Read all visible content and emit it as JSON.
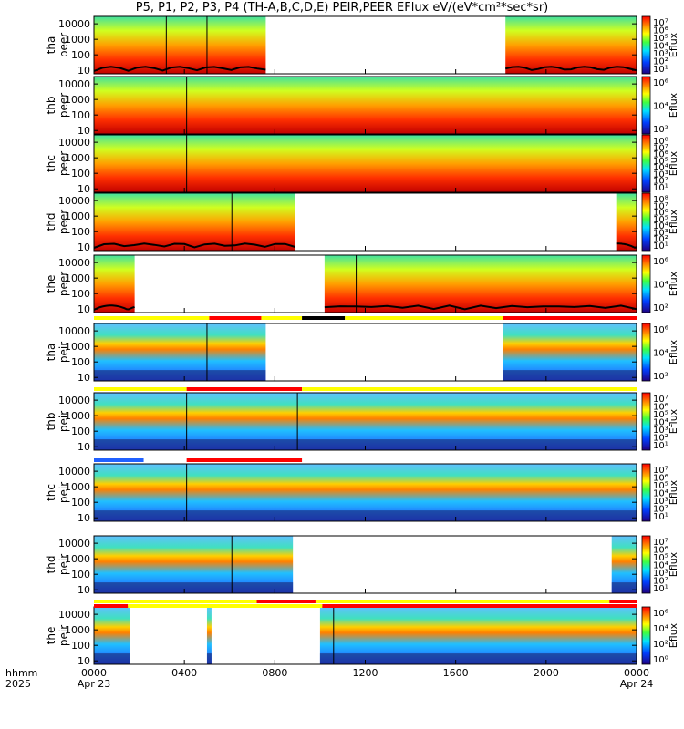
{
  "title": "P5, P1, P2, P3, P4 (TH-A,B,C,D,E) PEIR,PEER EFlux eV/(eV*cm²*sec*sr)",
  "chart_data": {
    "type": "heatmap",
    "title": "P5, P1, P2, P3, P4 (TH-A,B,C,D,E) PEIR,PEER EFlux eV/(eV*cm²*sec*sr)",
    "xlabel": "hhmm 2025",
    "x_row_label_1": "hhmm",
    "x_row_label_2": "2025",
    "x_ticks": [
      "0000",
      "0400",
      "0800",
      "1200",
      "1600",
      "2000",
      "0000"
    ],
    "x_date_labels": [
      "Apr 23",
      "Apr 24"
    ],
    "x_range_hours": [
      0,
      24
    ],
    "y_scale": "log",
    "y_range_eV": [
      6,
      30000
    ],
    "y_ticks": [
      10,
      100,
      1000,
      10000
    ],
    "colorbar_label": "Eflux",
    "panels": [
      {
        "probe": "tha",
        "type": "peer",
        "ylabel": "tha peer",
        "segments": [
          [
            0,
            7.6
          ],
          [
            18.2,
            24
          ]
        ],
        "segment_breaks": [
          3.2,
          5.0
        ],
        "low_cutoff_line": true,
        "colorbar_ticks": [
          "10⁷",
          "10⁶",
          "10⁵",
          "10⁴",
          "10³",
          "10²",
          "10¹"
        ]
      },
      {
        "probe": "thb",
        "type": "peer",
        "ylabel": "thb peer",
        "segments": [
          [
            0,
            24
          ]
        ],
        "segment_breaks": [
          4.1
        ],
        "low_cutoff_line": false,
        "colorbar_ticks": [
          "10⁶",
          "10⁴",
          "10²"
        ]
      },
      {
        "probe": "thc",
        "type": "peer",
        "ylabel": "thc peer",
        "segments": [
          [
            0,
            24
          ]
        ],
        "segment_breaks": [
          4.1
        ],
        "low_cutoff_line": false,
        "colorbar_ticks": [
          "10⁸",
          "10⁷",
          "10⁶",
          "10⁵",
          "10⁴",
          "10³",
          "10²",
          "10¹"
        ]
      },
      {
        "probe": "thd",
        "type": "peer",
        "ylabel": "thd peer",
        "segments": [
          [
            0,
            8.9
          ],
          [
            23.1,
            24
          ]
        ],
        "segment_breaks": [
          6.1
        ],
        "low_cutoff_line": true,
        "colorbar_ticks": [
          "10⁸",
          "10⁷",
          "10⁶",
          "10⁵",
          "10⁴",
          "10³",
          "10²",
          "10¹"
        ]
      },
      {
        "probe": "the",
        "type": "peer",
        "ylabel": "the peer",
        "segments": [
          [
            0,
            1.8
          ],
          [
            10.2,
            24
          ]
        ],
        "segment_breaks": [
          11.6
        ],
        "low_cutoff_line": true,
        "colorbar_ticks": [
          "10⁶",
          "10⁴",
          "10²"
        ]
      },
      {
        "probe": "tha",
        "type": "peir",
        "ylabel": "tha peir",
        "segments": [
          [
            0,
            7.6
          ],
          [
            18.1,
            24
          ]
        ],
        "segment_breaks": [
          5.0
        ],
        "low_cutoff_line": false,
        "colorbar_ticks": [
          "10⁶",
          "10⁴",
          "10²"
        ]
      },
      {
        "probe": "thb",
        "type": "peir",
        "ylabel": "thb peir",
        "segments": [
          [
            0,
            24
          ]
        ],
        "segment_breaks": [
          4.1,
          9.0
        ],
        "low_cutoff_line": false,
        "colorbar_ticks": [
          "10⁷",
          "10⁶",
          "10⁵",
          "10⁴",
          "10³",
          "10²",
          "10¹"
        ]
      },
      {
        "probe": "thc",
        "type": "peir",
        "ylabel": "thc peir",
        "segments": [
          [
            0,
            24
          ]
        ],
        "segment_breaks": [
          4.1
        ],
        "low_cutoff_line": false,
        "colorbar_ticks": [
          "10⁷",
          "10⁶",
          "10⁵",
          "10⁴",
          "10³",
          "10²",
          "10¹"
        ]
      },
      {
        "probe": "thd",
        "type": "peir",
        "ylabel": "thd peir",
        "segments": [
          [
            0,
            8.8
          ],
          [
            22.9,
            24
          ]
        ],
        "segment_breaks": [
          6.1
        ],
        "low_cutoff_line": false,
        "colorbar_ticks": [
          "10⁷",
          "10⁶",
          "10⁵",
          "10⁴",
          "10³",
          "10²",
          "10¹"
        ]
      },
      {
        "probe": "the",
        "type": "peir",
        "ylabel": "the peir",
        "segments": [
          [
            0,
            1.6
          ],
          [
            5.0,
            5.2
          ],
          [
            10.0,
            24
          ]
        ],
        "segment_breaks": [
          10.6
        ],
        "low_cutoff_line": false,
        "colorbar_ticks": [
          "10⁶",
          "10⁴",
          "10²",
          "10⁰"
        ]
      }
    ],
    "mode_bars": [
      {
        "after_panel": 5,
        "segments": [
          [
            "yellow",
            0,
            5.1
          ],
          [
            "red",
            5.1,
            7.4
          ],
          [
            "yellow",
            7.4,
            9.2
          ],
          [
            "black",
            9.2,
            11.1
          ],
          [
            "yellow",
            11.1,
            18.1
          ],
          [
            "red",
            18.1,
            24
          ]
        ]
      },
      {
        "after_panel": 6,
        "segments": [
          [
            "yellow",
            0,
            4.1
          ],
          [
            "red",
            4.1,
            9.2
          ],
          [
            "yellow",
            9.2,
            24
          ]
        ]
      },
      {
        "after_panel": 7,
        "segments": [
          [
            "blue",
            0,
            2.2
          ],
          [
            "red",
            4.1,
            9.2
          ]
        ]
      },
      {
        "after_panel": 9,
        "segments": [
          [
            "yellow",
            0,
            7.2
          ],
          [
            "red",
            7.2,
            9.8
          ],
          [
            "yellow",
            9.8,
            22.8
          ],
          [
            "red",
            22.8,
            24
          ]
        ]
      },
      {
        "after_panel": 10,
        "segments": [
          [
            "red",
            0,
            1.5
          ],
          [
            "yellow",
            1.5,
            10.1
          ],
          [
            "red",
            10.1,
            24
          ]
        ]
      }
    ]
  }
}
